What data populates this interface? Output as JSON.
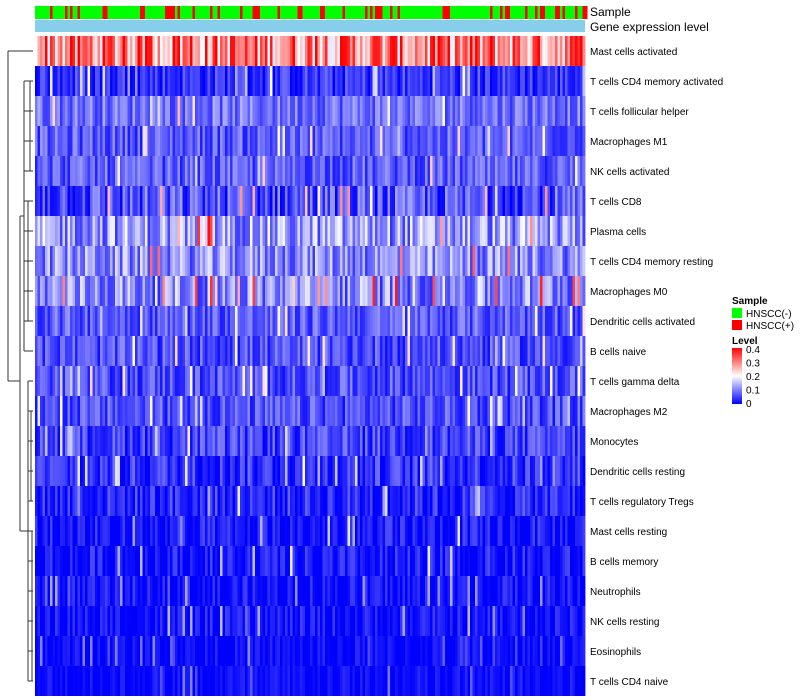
{
  "chart_data": {
    "type": "heatmap",
    "annotation_tracks": [
      "Sample",
      "Gene expression level"
    ],
    "rows": [
      {
        "label": "Mast cells activated",
        "mean": 0.3,
        "spread": 0.12
      },
      {
        "label": "T cells CD4 memory activated",
        "mean": 0.04,
        "spread": 0.05
      },
      {
        "label": "T cells follicular helper",
        "mean": 0.09,
        "spread": 0.05
      },
      {
        "label": "Macrophages M1",
        "mean": 0.07,
        "spread": 0.05
      },
      {
        "label": "NK cells activated",
        "mean": 0.07,
        "spread": 0.05
      },
      {
        "label": "T cells CD8",
        "mean": 0.06,
        "spread": 0.07
      },
      {
        "label": "Plasma cells",
        "mean": 0.12,
        "spread": 0.08
      },
      {
        "label": "T cells CD4 memory resting",
        "mean": 0.11,
        "spread": 0.07
      },
      {
        "label": "Macrophages M0",
        "mean": 0.11,
        "spread": 0.08
      },
      {
        "label": "Dendritic cells activated",
        "mean": 0.07,
        "spread": 0.05
      },
      {
        "label": "B cells naive",
        "mean": 0.06,
        "spread": 0.05
      },
      {
        "label": "T cells gamma delta",
        "mean": 0.06,
        "spread": 0.05
      },
      {
        "label": "Macrophages M2",
        "mean": 0.06,
        "spread": 0.05
      },
      {
        "label": "Monocytes",
        "mean": 0.05,
        "spread": 0.05
      },
      {
        "label": "Dendritic cells resting",
        "mean": 0.04,
        "spread": 0.05
      },
      {
        "label": "T cells regulatory  Tregs",
        "mean": 0.03,
        "spread": 0.05
      },
      {
        "label": "Mast cells resting",
        "mean": 0.01,
        "spread": 0.05
      },
      {
        "label": "B cells memory",
        "mean": 0.01,
        "spread": 0.05
      },
      {
        "label": "Neutrophils",
        "mean": 0.01,
        "spread": 0.04
      },
      {
        "label": "NK cells resting",
        "mean": 0.01,
        "spread": 0.04
      },
      {
        "label": "Eosinophils",
        "mean": 0.005,
        "spread": 0.03
      },
      {
        "label": "T cells CD4 naive",
        "mean": 0.005,
        "spread": 0.03
      }
    ],
    "n_samples": 220,
    "color_scale": {
      "min": 0,
      "max": 0.4,
      "colors": [
        "#0000ff",
        "#ffffff",
        "#ff0000"
      ]
    },
    "legend": {
      "sample_title": "Sample",
      "sample_groups": [
        {
          "label": "HNSCC(-)",
          "color": "#00ff00"
        },
        {
          "label": "HNSCC(+)",
          "color": "#ff0000"
        }
      ],
      "level_title": "Level",
      "level_ticks": [
        "0.4",
        "0.3",
        "0.2",
        "0.1",
        "0"
      ],
      "placement": "right"
    },
    "expression_track_color": "#87ceeb",
    "grid": false
  }
}
